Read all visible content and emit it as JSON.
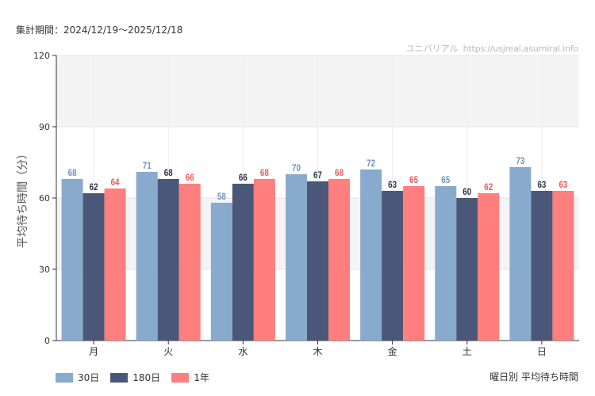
{
  "header": {
    "period_text": "集計期間：2024/12/19〜2025/12/18",
    "watermark_name": "ユニバリアル",
    "watermark_url": "https://usjreal.asumirai.info"
  },
  "caption": "曜日別 平均待ち時間",
  "chart_data": {
    "type": "bar",
    "title": "",
    "xlabel": "",
    "ylabel": "平均待ち時間（分）",
    "ylim": [
      0,
      120
    ],
    "yticks": [
      0,
      30,
      60,
      90,
      120
    ],
    "grid": true,
    "legend_position": "bottom-left",
    "categories": [
      "月",
      "火",
      "水",
      "木",
      "金",
      "土",
      "日"
    ],
    "series": [
      {
        "name": "30日",
        "color": "#88aacc",
        "label_color": "#6f93bf",
        "values": [
          68,
          71,
          58,
          70,
          72,
          65,
          73
        ]
      },
      {
        "name": "180日",
        "color": "#4a5779",
        "label_color": "#2b3550",
        "values": [
          62,
          68,
          66,
          67,
          63,
          60,
          63
        ]
      },
      {
        "name": "1年",
        "color": "#ff7f7f",
        "label_color": "#ee5a5a",
        "values": [
          64,
          66,
          68,
          68,
          65,
          62,
          63
        ]
      }
    ]
  }
}
